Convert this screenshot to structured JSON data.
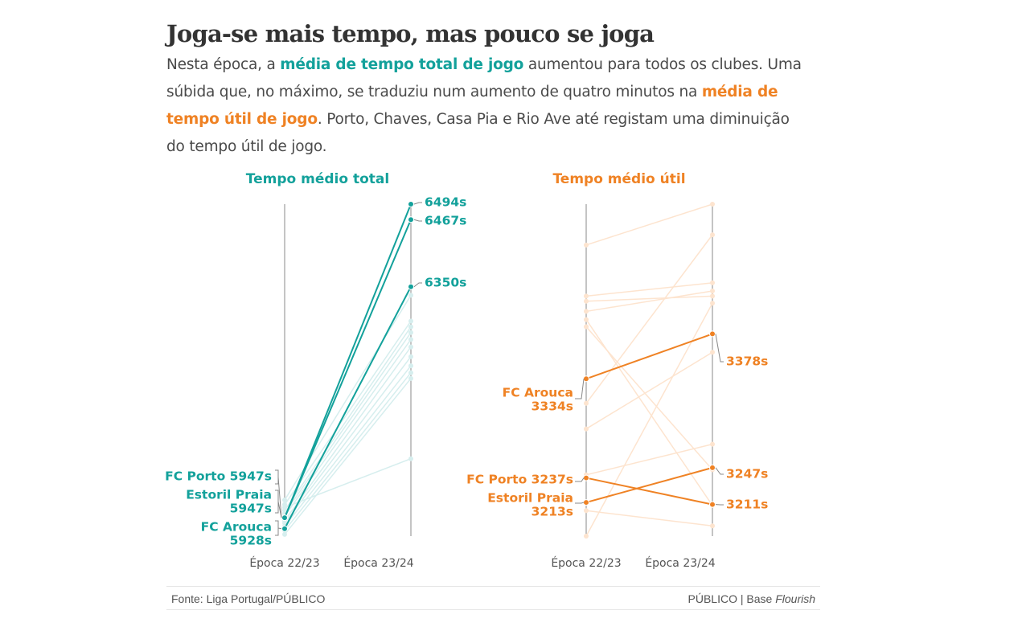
{
  "title": "Joga-se mais tempo, mas pouco se joga",
  "subtitle": {
    "s1": "Nesta época, a ",
    "h1": "média de tempo total de jogo",
    "s2": " aumentou para todos os clubes. Uma súbida que, no máximo, se traduziu num aumento de quatro minutos na ",
    "h2": "média de tempo útil de jogo",
    "s3": ". Porto, Chaves, Casa Pia e Rio Ave até registam uma diminuição do tempo útil de jogo."
  },
  "colors": {
    "total": "#13a19b",
    "total_faint": "#d6eeee",
    "util": "#ef8224",
    "util_faint": "#fde4cf",
    "axis": "#888888"
  },
  "footer": {
    "source": "Fonte: Liga Portugal/PÚBLICO",
    "credit_prefix": "PÚBLICO | Base ",
    "credit_em": "Flourish"
  },
  "chart_data": [
    {
      "type": "slope",
      "title": "Tempo médio total",
      "x": [
        "Época 22/23",
        "Época 23/24"
      ],
      "ylim": [
        5915,
        6494
      ],
      "series": [
        {
          "name": "FC Porto",
          "values": [
            5947,
            6494
          ],
          "highlight": true
        },
        {
          "name": "Estoril Praia",
          "values": [
            5947,
            6467
          ],
          "highlight": true
        },
        {
          "name": "FC Arouca",
          "values": [
            5928,
            6350
          ],
          "highlight": true
        },
        {
          "values": [
            5978,
            6335
          ],
          "highlight": false
        },
        {
          "values": [
            5970,
            6290
          ],
          "highlight": false
        },
        {
          "values": [
            5960,
            6280
          ],
          "highlight": false
        },
        {
          "values": [
            5955,
            6270
          ],
          "highlight": false
        },
        {
          "values": [
            5950,
            6258
          ],
          "highlight": false
        },
        {
          "values": [
            5942,
            6245
          ],
          "highlight": false
        },
        {
          "values": [
            5938,
            6228
          ],
          "highlight": false
        },
        {
          "values": [
            5932,
            6212
          ],
          "highlight": false
        },
        {
          "values": [
            5925,
            6200
          ],
          "highlight": false
        },
        {
          "values": [
            5918,
            6190
          ],
          "highlight": false
        },
        {
          "values": [
            5965,
            6050
          ],
          "highlight": false
        }
      ],
      "labels_start": [
        {
          "text": "FC Porto 5947s"
        },
        {
          "text": "Estoril Praia"
        },
        {
          "text": "5947s"
        },
        {
          "text": "FC Arouca"
        },
        {
          "text": "5928s"
        }
      ],
      "labels_end": [
        {
          "text": "6494s"
        },
        {
          "text": "6467s"
        },
        {
          "text": "6350s"
        }
      ]
    },
    {
      "type": "slope",
      "title": "Tempo médio útil",
      "x": [
        "Época 22/23",
        "Época 23/24"
      ],
      "ylim": [
        3180,
        3505
      ],
      "series": [
        {
          "name": "FC Arouca",
          "values": [
            3334,
            3378
          ],
          "highlight": true
        },
        {
          "name": "FC Porto",
          "values": [
            3237,
            3211
          ],
          "highlight": true
        },
        {
          "name": "Estoril Praia",
          "values": [
            3213,
            3247
          ],
          "highlight": true
        },
        {
          "values": [
            3465,
            3505
          ],
          "highlight": false
        },
        {
          "values": [
            3415,
            3428
          ],
          "highlight": false
        },
        {
          "values": [
            3410,
            3415
          ],
          "highlight": false
        },
        {
          "values": [
            3400,
            3420
          ],
          "highlight": false
        },
        {
          "values": [
            3392,
            3210
          ],
          "highlight": false
        },
        {
          "values": [
            3385,
            3245
          ],
          "highlight": false
        },
        {
          "values": [
            3310,
            3475
          ],
          "highlight": false
        },
        {
          "values": [
            3285,
            3360
          ],
          "highlight": false
        },
        {
          "values": [
            3240,
            3270
          ],
          "highlight": false
        },
        {
          "values": [
            3205,
            3190
          ],
          "highlight": false
        },
        {
          "values": [
            3180,
            3408
          ],
          "highlight": false
        }
      ],
      "labels_start": [
        {
          "text": "FC Arouca"
        },
        {
          "text": "3334s"
        },
        {
          "text": "FC Porto 3237s"
        },
        {
          "text": "Estoril Praia"
        },
        {
          "text": "3213s"
        }
      ],
      "labels_end": [
        {
          "text": "3378s"
        },
        {
          "text": "3247s"
        },
        {
          "text": "3211s"
        }
      ]
    }
  ]
}
